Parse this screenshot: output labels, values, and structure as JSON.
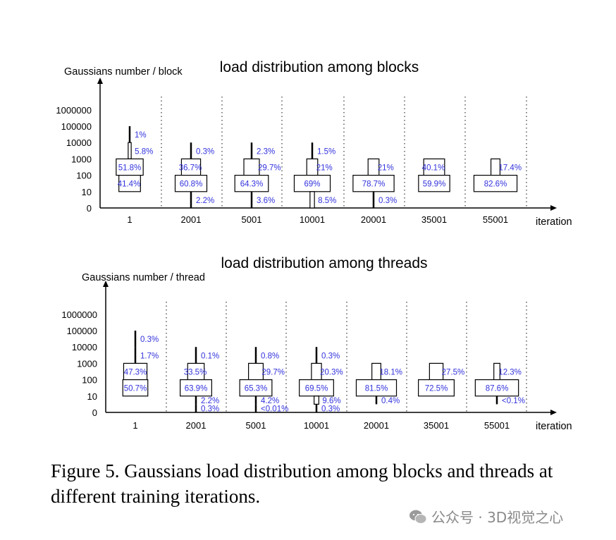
{
  "chart_data": [
    {
      "type": "distribution",
      "title": "load distribution among blocks",
      "ylabel": "Gaussians number / block",
      "xlabel": "iteration",
      "y_ticks": [
        "1000000",
        "100000",
        "10000",
        "1000",
        "100",
        "10",
        "0"
      ],
      "categories": [
        "1",
        "2001",
        "5001",
        "10001",
        "20001",
        "35001",
        "55001"
      ],
      "bins": [
        [
          {
            "lo": 4,
            "hi": 5,
            "pct": 1,
            "label": "1%"
          },
          {
            "lo": 3,
            "hi": 4,
            "pct": 5.8,
            "label": "5.8%"
          },
          {
            "lo": 2,
            "hi": 3,
            "pct": 51.8,
            "label": "51.8%"
          },
          {
            "lo": 1,
            "hi": 2,
            "pct": 41.4,
            "label": "41.4%"
          }
        ],
        [
          {
            "lo": 3,
            "hi": 4,
            "pct": 0.3,
            "label": "0.3%"
          },
          {
            "lo": 2,
            "hi": 3,
            "pct": 36.7,
            "label": "36.7%"
          },
          {
            "lo": 1,
            "hi": 2,
            "pct": 60.8,
            "label": "60.8%"
          },
          {
            "lo": 0,
            "hi": 1,
            "pct": 2.2,
            "label": "2.2%"
          }
        ],
        [
          {
            "lo": 3,
            "hi": 4,
            "pct": 2.3,
            "label": "2.3%"
          },
          {
            "lo": 2,
            "hi": 3,
            "pct": 29.7,
            "label": "29.7%"
          },
          {
            "lo": 1,
            "hi": 2,
            "pct": 64.3,
            "label": "64.3%"
          },
          {
            "lo": 0,
            "hi": 1,
            "pct": 3.6,
            "label": "3.6%"
          }
        ],
        [
          {
            "lo": 3,
            "hi": 4,
            "pct": 1.5,
            "label": "1.5%"
          },
          {
            "lo": 2,
            "hi": 3,
            "pct": 21,
            "label": "21%"
          },
          {
            "lo": 1,
            "hi": 2,
            "pct": 69,
            "label": "69%"
          },
          {
            "lo": 0,
            "hi": 1,
            "pct": 8.5,
            "label": "8.5%"
          }
        ],
        [
          {
            "lo": 2,
            "hi": 3,
            "pct": 21,
            "label": "21%"
          },
          {
            "lo": 1,
            "hi": 2,
            "pct": 78.7,
            "label": "78.7%"
          },
          {
            "lo": 0,
            "hi": 1,
            "pct": 0.3,
            "label": "0.3%"
          }
        ],
        [
          {
            "lo": 2,
            "hi": 3,
            "pct": 40.1,
            "label": "40.1%"
          },
          {
            "lo": 1,
            "hi": 2,
            "pct": 59.9,
            "label": "59.9%"
          }
        ],
        [
          {
            "lo": 2,
            "hi": 3,
            "pct": 17.4,
            "label": "17.4%"
          },
          {
            "lo": 1,
            "hi": 2,
            "pct": 82.6,
            "label": "82.6%"
          }
        ]
      ]
    },
    {
      "type": "distribution",
      "title": "load distribution among threads",
      "ylabel": "Gaussians number / thread",
      "xlabel": "iteration",
      "y_ticks": [
        "1000000",
        "100000",
        "10000",
        "1000",
        "100",
        "10",
        "0"
      ],
      "categories": [
        "1",
        "2001",
        "5001",
        "10001",
        "20001",
        "35001",
        "55001"
      ],
      "bins": [
        [
          {
            "lo": 4,
            "hi": 5,
            "pct": 0.3,
            "label": "0.3%"
          },
          {
            "lo": 3,
            "hi": 4,
            "pct": 1.7,
            "label": "1.7%"
          },
          {
            "lo": 2,
            "hi": 3,
            "pct": 47.3,
            "label": "47.3%"
          },
          {
            "lo": 1,
            "hi": 2,
            "pct": 50.7,
            "label": "50.7%"
          }
        ],
        [
          {
            "lo": 3,
            "hi": 4,
            "pct": 0.1,
            "label": "0.1%"
          },
          {
            "lo": 2,
            "hi": 3,
            "pct": 33.5,
            "label": "33.5%"
          },
          {
            "lo": 1,
            "hi": 2,
            "pct": 63.9,
            "label": "63.9%"
          },
          {
            "lo": 0.5,
            "hi": 1,
            "pct": 2.2,
            "label": "2.2%"
          },
          {
            "lo": 0,
            "hi": 0.5,
            "pct": 0.3,
            "label": "0.3%"
          }
        ],
        [
          {
            "lo": 3,
            "hi": 4,
            "pct": 0.8,
            "label": "0.8%"
          },
          {
            "lo": 2,
            "hi": 3,
            "pct": 29.7,
            "label": "29.7%"
          },
          {
            "lo": 1,
            "hi": 2,
            "pct": 65.3,
            "label": "65.3%"
          },
          {
            "lo": 0.5,
            "hi": 1,
            "pct": 4.2,
            "label": "4.2%"
          },
          {
            "lo": 0,
            "hi": 0.5,
            "pct": 0.01,
            "label": "<0.01%"
          }
        ],
        [
          {
            "lo": 3,
            "hi": 4,
            "pct": 0.3,
            "label": "0.3%"
          },
          {
            "lo": 2,
            "hi": 3,
            "pct": 20.3,
            "label": "20.3%"
          },
          {
            "lo": 1,
            "hi": 2,
            "pct": 69.5,
            "label": "69.5%"
          },
          {
            "lo": 0.5,
            "hi": 1,
            "pct": 9.6,
            "label": "9.6%"
          },
          {
            "lo": 0,
            "hi": 0.5,
            "pct": 0.3,
            "label": "0.3%"
          }
        ],
        [
          {
            "lo": 2,
            "hi": 3,
            "pct": 18.1,
            "label": "18.1%"
          },
          {
            "lo": 1,
            "hi": 2,
            "pct": 81.5,
            "label": "81.5%"
          },
          {
            "lo": 0.5,
            "hi": 1,
            "pct": 0.4,
            "label": "0.4%"
          }
        ],
        [
          {
            "lo": 2,
            "hi": 3,
            "pct": 27.5,
            "label": "27.5%"
          },
          {
            "lo": 1,
            "hi": 2,
            "pct": 72.5,
            "label": "72.5%"
          }
        ],
        [
          {
            "lo": 2,
            "hi": 3,
            "pct": 12.3,
            "label": "12.3%"
          },
          {
            "lo": 1,
            "hi": 2,
            "pct": 87.6,
            "label": "87.6%"
          },
          {
            "lo": 0.5,
            "hi": 1,
            "pct": 0.1,
            "label": "<0.1%"
          }
        ]
      ]
    }
  ],
  "colors": {
    "label": "#3333dd",
    "box": "#000000",
    "divider": "#333333"
  },
  "caption": "Figure 5. Gaussians load distribution among blocks and threads at different training iterations.",
  "watermark": "公众号 · 3D视觉之心"
}
